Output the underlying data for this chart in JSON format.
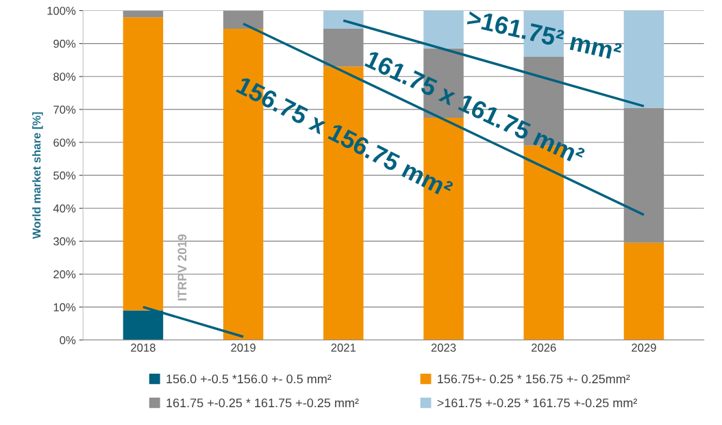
{
  "chart_data": {
    "type": "bar",
    "stacked": true,
    "ylabel": "World market share [%]",
    "categories": [
      "2018",
      "2019",
      "2021",
      "2023",
      "2026",
      "2029"
    ],
    "series": [
      {
        "name": "156.0 +-0.5 *156.0 +- 0.5 mm²",
        "color": "#00617f",
        "values": [
          9,
          0,
          0,
          0,
          0,
          0
        ]
      },
      {
        "name": "156.75+- 0.25 * 156.75 +- 0.25mm²",
        "color": "#f39200",
        "values": [
          89,
          94.5,
          83,
          67.5,
          59,
          29.5
        ]
      },
      {
        "name": "161.75 +-0.25 * 161.75 +-0.25 mm²",
        "color": "#8f8f8f",
        "values": [
          2,
          5.5,
          11.5,
          21,
          27,
          41
        ]
      },
      {
        "name": ">161.75 +-0.25 * 161.75 +-0.25 mm²",
        "color": "#a5c9df",
        "values": [
          0,
          0,
          5.5,
          11.5,
          14,
          29.5
        ]
      },
      {
        "type": "line",
        "color": "#00617f",
        "values": [
          10,
          1,
          null,
          null,
          null,
          null
        ]
      },
      {
        "type": "line",
        "color": "#00617f",
        "values": [
          null,
          96,
          null,
          null,
          null,
          38
        ]
      },
      {
        "type": "line",
        "color": "#00617f",
        "values": [
          null,
          null,
          97,
          null,
          null,
          71
        ]
      }
    ],
    "ylim": [
      0,
      100
    ],
    "yticks": [
      {
        "value": 0,
        "label": "0%"
      },
      {
        "value": 10,
        "label": "10%"
      },
      {
        "value": 20,
        "label": "20%"
      },
      {
        "value": 30,
        "label": "30%"
      },
      {
        "value": 40,
        "label": "40%"
      },
      {
        "value": 50,
        "label": "50%"
      },
      {
        "value": 60,
        "label": "60%"
      },
      {
        "value": 70,
        "label": "70%"
      },
      {
        "value": 80,
        "label": "80%"
      },
      {
        "value": 90,
        "label": "90%"
      },
      {
        "value": 100,
        "label": "100%"
      }
    ],
    "grid": "y",
    "legend": "bottom",
    "annotations": [
      "ITRPV 2019",
      "156.75 x 156.75 mm²",
      "161.75 x 161.75 mm²",
      ">161.75² mm²"
    ]
  }
}
